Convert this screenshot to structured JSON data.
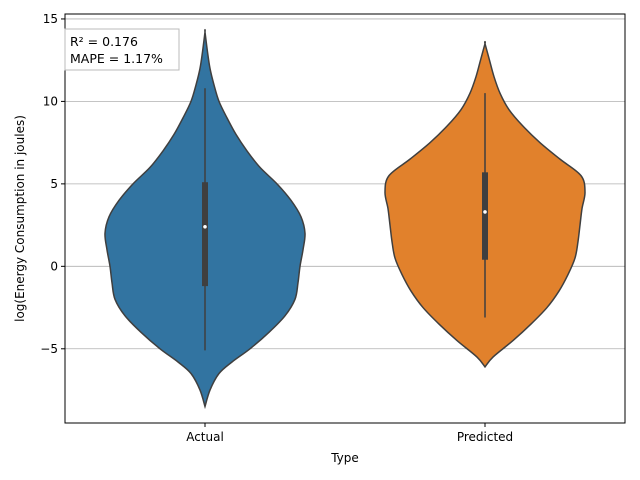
{
  "chart_data": {
    "type": "violin",
    "title": "",
    "xlabel": "Type",
    "ylabel": "log(Energy Consumption in joules)",
    "categories": [
      "Actual",
      "Predicted"
    ],
    "ylim": [
      -9.5,
      15.3
    ],
    "yticks": [
      -5,
      0,
      5,
      10,
      15
    ],
    "ytick_labels": [
      "−5",
      "0",
      "5",
      "10",
      "15"
    ],
    "grid": "y",
    "annotation": {
      "lines": [
        "R² = 0.176",
        "MAPE = 1.17%"
      ],
      "placement": "top-left"
    },
    "series": [
      {
        "category": "Actual",
        "color": "#3274a1",
        "density_min": -8.5,
        "density_max": 14.2,
        "whisker": [
          -5.1,
          10.8
        ],
        "quartiles": [
          -1.2,
          5.1
        ],
        "median": 2.4,
        "density_profile": [
          [
            -8.5,
            0.0
          ],
          [
            -7.5,
            0.05
          ],
          [
            -6.5,
            0.14
          ],
          [
            -5.8,
            0.27
          ],
          [
            -5.0,
            0.45
          ],
          [
            -4.0,
            0.64
          ],
          [
            -3.0,
            0.8
          ],
          [
            -2.0,
            0.9
          ],
          [
            -1.0,
            0.93
          ],
          [
            0.0,
            0.95
          ],
          [
            1.0,
            0.98
          ],
          [
            2.0,
            1.0
          ],
          [
            3.0,
            0.96
          ],
          [
            4.0,
            0.86
          ],
          [
            5.0,
            0.72
          ],
          [
            6.0,
            0.55
          ],
          [
            7.0,
            0.42
          ],
          [
            8.0,
            0.31
          ],
          [
            9.0,
            0.22
          ],
          [
            10.0,
            0.14
          ],
          [
            11.0,
            0.09
          ],
          [
            12.0,
            0.05
          ],
          [
            13.0,
            0.025
          ],
          [
            14.2,
            0.0
          ]
        ]
      },
      {
        "category": "Predicted",
        "color": "#e1812c",
        "density_min": -6.1,
        "density_max": 13.5,
        "whisker": [
          -3.1,
          10.5
        ],
        "quartiles": [
          0.4,
          5.7
        ],
        "median": 3.3,
        "density_profile": [
          [
            -6.1,
            0.0
          ],
          [
            -5.5,
            0.08
          ],
          [
            -4.5,
            0.28
          ],
          [
            -3.5,
            0.46
          ],
          [
            -2.5,
            0.62
          ],
          [
            -1.5,
            0.74
          ],
          [
            -0.5,
            0.83
          ],
          [
            0.5,
            0.9
          ],
          [
            1.5,
            0.93
          ],
          [
            2.5,
            0.95
          ],
          [
            3.5,
            0.97
          ],
          [
            4.5,
            1.0
          ],
          [
            5.5,
            0.96
          ],
          [
            6.5,
            0.75
          ],
          [
            7.5,
            0.55
          ],
          [
            8.5,
            0.38
          ],
          [
            9.5,
            0.24
          ],
          [
            10.5,
            0.15
          ],
          [
            11.5,
            0.09
          ],
          [
            12.5,
            0.045
          ],
          [
            13.5,
            0.0
          ]
        ]
      }
    ]
  }
}
